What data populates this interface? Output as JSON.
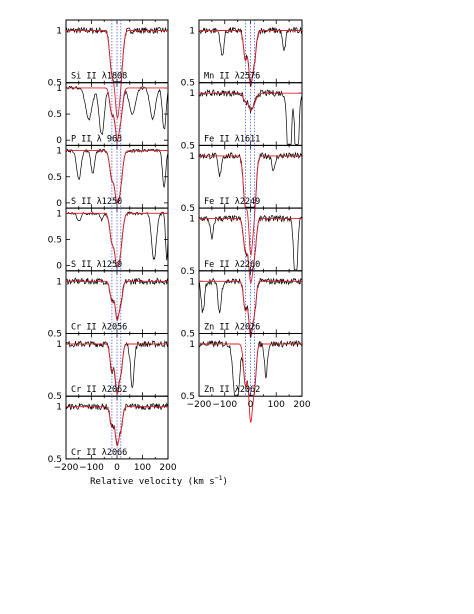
{
  "chart_data": {
    "type": "line",
    "title": "",
    "xlabel": "Relative velocity (km s",
    "xlabel_sup": "−1",
    "xlabel_close": ")",
    "xlim": [
      -200,
      200
    ],
    "ylim": [
      0,
      1.1
    ],
    "x_ticks": [
      "−200",
      "−100",
      "0",
      "100",
      "200"
    ],
    "component_velocities": [
      -20,
      0,
      15
    ],
    "colors": {
      "spectrum": "#000000",
      "model": "#e0202a",
      "components": "#3a4fd0"
    },
    "panels": [
      {
        "ion": "Si II λ1808",
        "yticks": [
          "0.5",
          "1"
        ],
        "ymin_label": "0.5",
        "depth": 0.72,
        "width": 12,
        "extra": []
      },
      {
        "ion": "P II λ 963",
        "yticks": [
          "0",
          "0.5",
          "1"
        ],
        "depth": 0.9,
        "width": 11,
        "extra": [
          [
            -110,
            0.6,
            18
          ],
          [
            -60,
            0.9,
            14
          ],
          [
            60,
            0.5,
            18
          ],
          [
            140,
            0.6,
            15
          ],
          [
            185,
            0.8,
            10
          ]
        ]
      },
      {
        "ion": "S II λ1250",
        "yticks": [
          "0",
          "0.5",
          "1"
        ],
        "depth": 0.92,
        "width": 12,
        "extra": [
          [
            -150,
            0.55,
            12
          ],
          [
            -95,
            0.45,
            10
          ],
          [
            185,
            0.7,
            9
          ]
        ]
      },
      {
        "ion": "S II λ1259",
        "yticks": [
          "0",
          "0.5",
          "1"
        ],
        "depth": 0.95,
        "width": 12,
        "extra": [
          [
            -150,
            0.15,
            10
          ],
          [
            -60,
            0.12,
            10
          ],
          [
            145,
            0.88,
            13
          ],
          [
            195,
            0.9,
            6
          ]
        ]
      },
      {
        "ion": "Cr II λ2056",
        "yticks": [
          "0.5",
          "1"
        ],
        "depth": 0.35,
        "width": 10,
        "extra": []
      },
      {
        "ion": "Cr II λ2062",
        "yticks": [
          "0.5",
          "1"
        ],
        "depth": 0.45,
        "width": 10,
        "extra": [
          [
            60,
            0.4,
            10
          ]
        ]
      },
      {
        "ion": "Cr II λ2066",
        "yticks": [
          "0.5",
          "1"
        ],
        "depth": 0.35,
        "width": 10,
        "extra": []
      },
      {
        "ion": "Mn II λ2576",
        "yticks": [
          "0.5",
          "1"
        ],
        "depth": 0.5,
        "width": 10,
        "extra": [
          [
            -110,
            0.25,
            9
          ],
          [
            130,
            0.2,
            8
          ]
        ]
      },
      {
        "ion": "Fe II λ1611",
        "yticks": [
          "0.5",
          "1"
        ],
        "depth": 0.15,
        "width": 11,
        "extra": [
          [
            150,
            0.9,
            10
          ],
          [
            180,
            0.95,
            9
          ]
        ]
      },
      {
        "ion": "Fe II λ2249",
        "yticks": [
          "0.5",
          "1"
        ],
        "depth": 0.85,
        "width": 11,
        "extra": [
          [
            -120,
            0.2,
            8
          ],
          [
            90,
            0.15,
            8
          ]
        ]
      },
      {
        "ion": "Fe II λ2260",
        "yticks": [
          "0.5",
          "1"
        ],
        "depth": 0.55,
        "width": 11,
        "extra": [
          [
            -150,
            0.2,
            8
          ],
          [
            175,
            0.75,
            9
          ]
        ]
      },
      {
        "ion": "Zn II λ2026",
        "yticks": [
          "0.5",
          "1"
        ],
        "depth": 0.5,
        "width": 10,
        "extra": [
          [
            -185,
            0.3,
            9
          ],
          [
            -120,
            0.3,
            9
          ]
        ]
      },
      {
        "ion": "Zn II λ2062",
        "yticks": [
          "0.5",
          "1"
        ],
        "depth": 0.7,
        "width": 10,
        "extra": [
          [
            -55,
            0.7,
            14
          ],
          [
            60,
            0.3,
            8
          ]
        ]
      }
    ]
  }
}
